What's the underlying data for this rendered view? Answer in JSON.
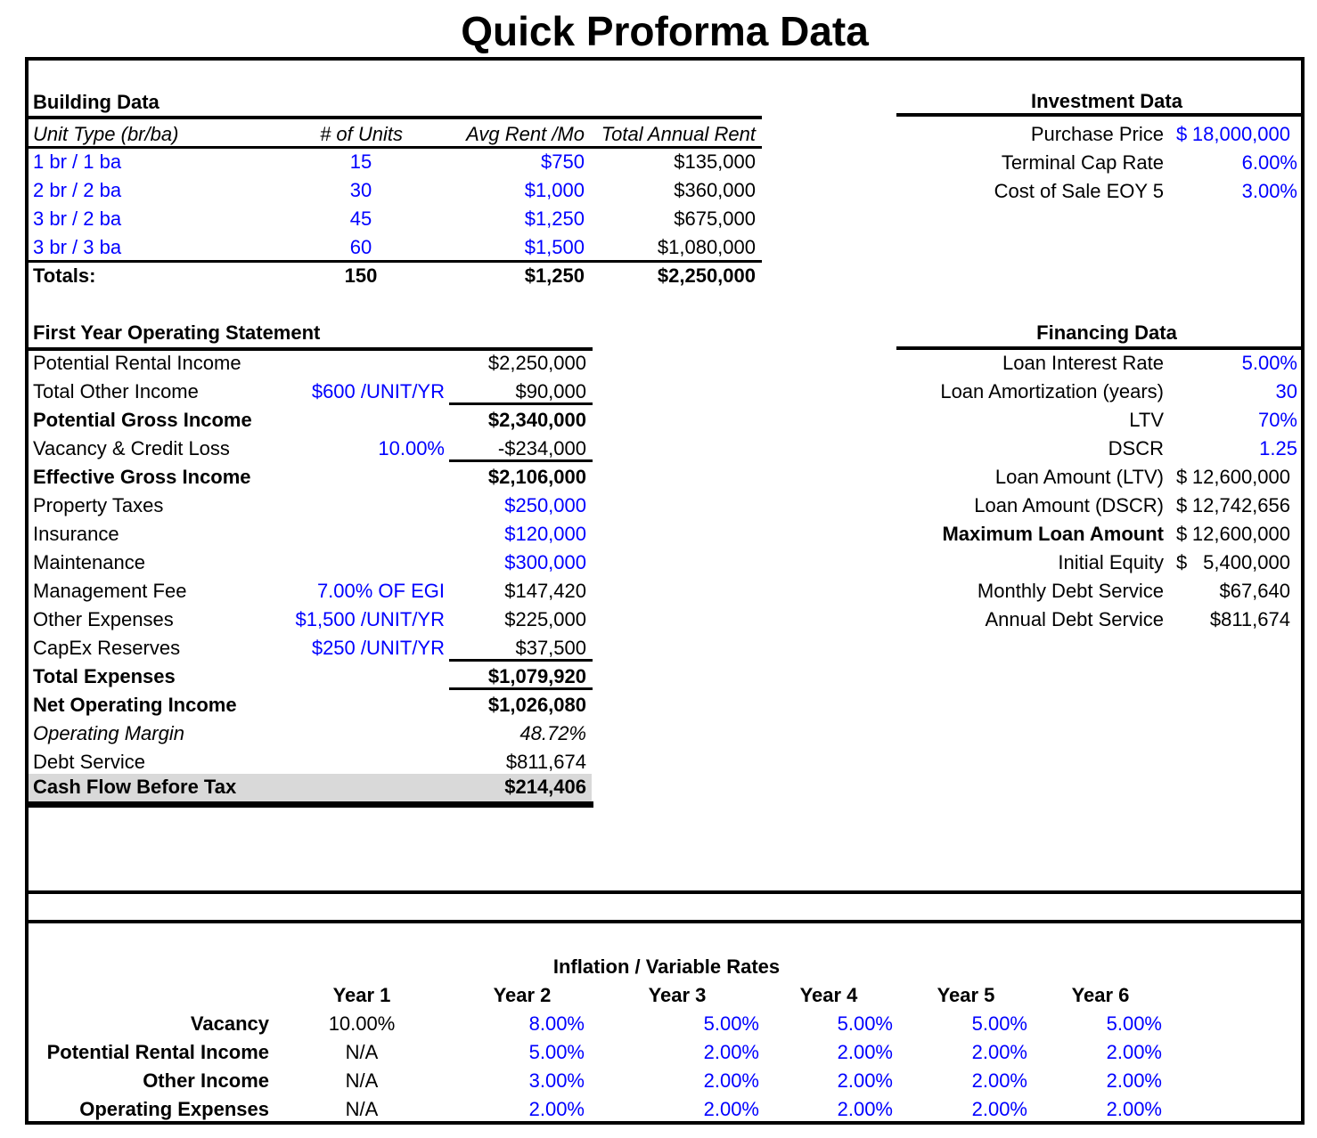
{
  "title": "Quick Proforma Data",
  "colors": {
    "input_blue": "#0000ff",
    "text_black": "#000000",
    "highlight_gray": "#d9d9d9"
  },
  "building": {
    "header": "Building Data",
    "columns": [
      "Unit Type (br/ba)",
      "# of Units",
      "Avg Rent /Mo",
      "Total Annual Rent"
    ],
    "rows": [
      {
        "unit_type": "1 br / 1 ba",
        "units": "15",
        "avg_rent": "$750",
        "annual_rent": "$135,000"
      },
      {
        "unit_type": "2 br / 2 ba",
        "units": "30",
        "avg_rent": "$1,000",
        "annual_rent": "$360,000"
      },
      {
        "unit_type": "3 br / 2 ba",
        "units": "45",
        "avg_rent": "$1,250",
        "annual_rent": "$675,000"
      },
      {
        "unit_type": "3 br / 3 ba",
        "units": "60",
        "avg_rent": "$1,500",
        "annual_rent": "$1,080,000"
      }
    ],
    "totals": {
      "label": "Totals:",
      "units": "150",
      "avg_rent": "$1,250",
      "annual_rent": "$2,250,000"
    }
  },
  "operating": {
    "header": "First Year Operating Statement",
    "rows": [
      {
        "label": "Potential Rental Income",
        "assumption": "",
        "value": "$2,250,000"
      },
      {
        "label": "Total Other Income",
        "assumption": "$600 /UNIT/YR",
        "value": "$90,000",
        "underline_after": true
      },
      {
        "label": "Potential Gross Income",
        "assumption": "",
        "value": "$2,340,000",
        "bold": true
      },
      {
        "label": "Vacancy & Credit Loss",
        "assumption": "10.00%",
        "value": "-$234,000",
        "underline_after": true
      },
      {
        "label": "Effective Gross Income",
        "assumption": "",
        "value": "$2,106,000",
        "bold": true
      },
      {
        "label": "Property Taxes",
        "assumption": "",
        "value": "$250,000",
        "blue_value": true
      },
      {
        "label": "Insurance",
        "assumption": "",
        "value": "$120,000",
        "blue_value": true
      },
      {
        "label": "Maintenance",
        "assumption": "",
        "value": "$300,000",
        "blue_value": true
      },
      {
        "label": "Management Fee",
        "assumption": "7.00% OF EGI",
        "value": "$147,420"
      },
      {
        "label": "Other Expenses",
        "assumption": "$1,500 /UNIT/YR",
        "value": "$225,000"
      },
      {
        "label": "CapEx Reserves",
        "assumption": "$250 /UNIT/YR",
        "value": "$37,500",
        "underline_after": true
      },
      {
        "label": "Total Expenses",
        "assumption": "",
        "value": "$1,079,920",
        "bold": true,
        "underline_after": true
      },
      {
        "label": "Net Operating Income",
        "assumption": "",
        "value": "$1,026,080",
        "bold": true
      },
      {
        "label": "Operating Margin",
        "assumption": "",
        "value": "48.72%",
        "italic": true
      },
      {
        "label": "Debt Service",
        "assumption": "",
        "value": "$811,674"
      },
      {
        "label": "Cash Flow Before Tax",
        "assumption": "",
        "value": "$214,406",
        "bold": true,
        "gray_bg": true
      }
    ]
  },
  "investment": {
    "header": "Investment Data",
    "rows": [
      {
        "label": "Purchase Price",
        "currency_symbol": "$",
        "value": "18,000,000",
        "blue_value": true,
        "accounting": true
      },
      {
        "label": "Terminal Cap Rate",
        "value": "6.00%",
        "blue_value": true
      },
      {
        "label": "Cost of Sale EOY 5",
        "value": "3.00%",
        "blue_value": true
      }
    ]
  },
  "financing": {
    "header": "Financing Data",
    "rows": [
      {
        "label": "Loan Interest Rate",
        "value": "5.00%",
        "blue_value": true
      },
      {
        "label": "Loan Amortization (years)",
        "value": "30",
        "blue_value": true
      },
      {
        "label": "LTV",
        "value": "70%",
        "blue_value": true
      },
      {
        "label": "DSCR",
        "value": "1.25",
        "blue_value": true
      },
      {
        "label": "Loan Amount (LTV)",
        "currency_symbol": "$",
        "value": "12,600,000",
        "accounting": true
      },
      {
        "label": "Loan Amount (DSCR)",
        "currency_symbol": "$",
        "value": "12,742,656",
        "accounting": true
      },
      {
        "label": "Maximum Loan Amount",
        "currency_symbol": "$",
        "value": "12,600,000",
        "accounting": true,
        "bold_label": true
      },
      {
        "label": "Initial Equity",
        "currency_symbol": "$",
        "value": "5,400,000",
        "accounting": true
      },
      {
        "label": "Monthly Debt Service",
        "value": "$67,640",
        "currency_right": true
      },
      {
        "label": "Annual Debt Service",
        "value": "$811,674",
        "currency_right": true
      }
    ]
  },
  "inflation": {
    "title": "Inflation / Variable Rates",
    "year_headers": [
      "Year 1",
      "Year 2",
      "Year 3",
      "Year 4",
      "Year 5",
      "Year 6"
    ],
    "rows": [
      {
        "label": "Vacancy",
        "values": [
          "10.00%",
          "8.00%",
          "5.00%",
          "5.00%",
          "5.00%",
          "5.00%"
        ]
      },
      {
        "label": "Potential Rental Income",
        "values": [
          "N/A",
          "5.00%",
          "2.00%",
          "2.00%",
          "2.00%",
          "2.00%"
        ]
      },
      {
        "label": "Other Income",
        "values": [
          "N/A",
          "3.00%",
          "2.00%",
          "2.00%",
          "2.00%",
          "2.00%"
        ]
      },
      {
        "label": "Operating Expenses",
        "values": [
          "N/A",
          "2.00%",
          "2.00%",
          "2.00%",
          "2.00%",
          "2.00%"
        ]
      }
    ]
  }
}
